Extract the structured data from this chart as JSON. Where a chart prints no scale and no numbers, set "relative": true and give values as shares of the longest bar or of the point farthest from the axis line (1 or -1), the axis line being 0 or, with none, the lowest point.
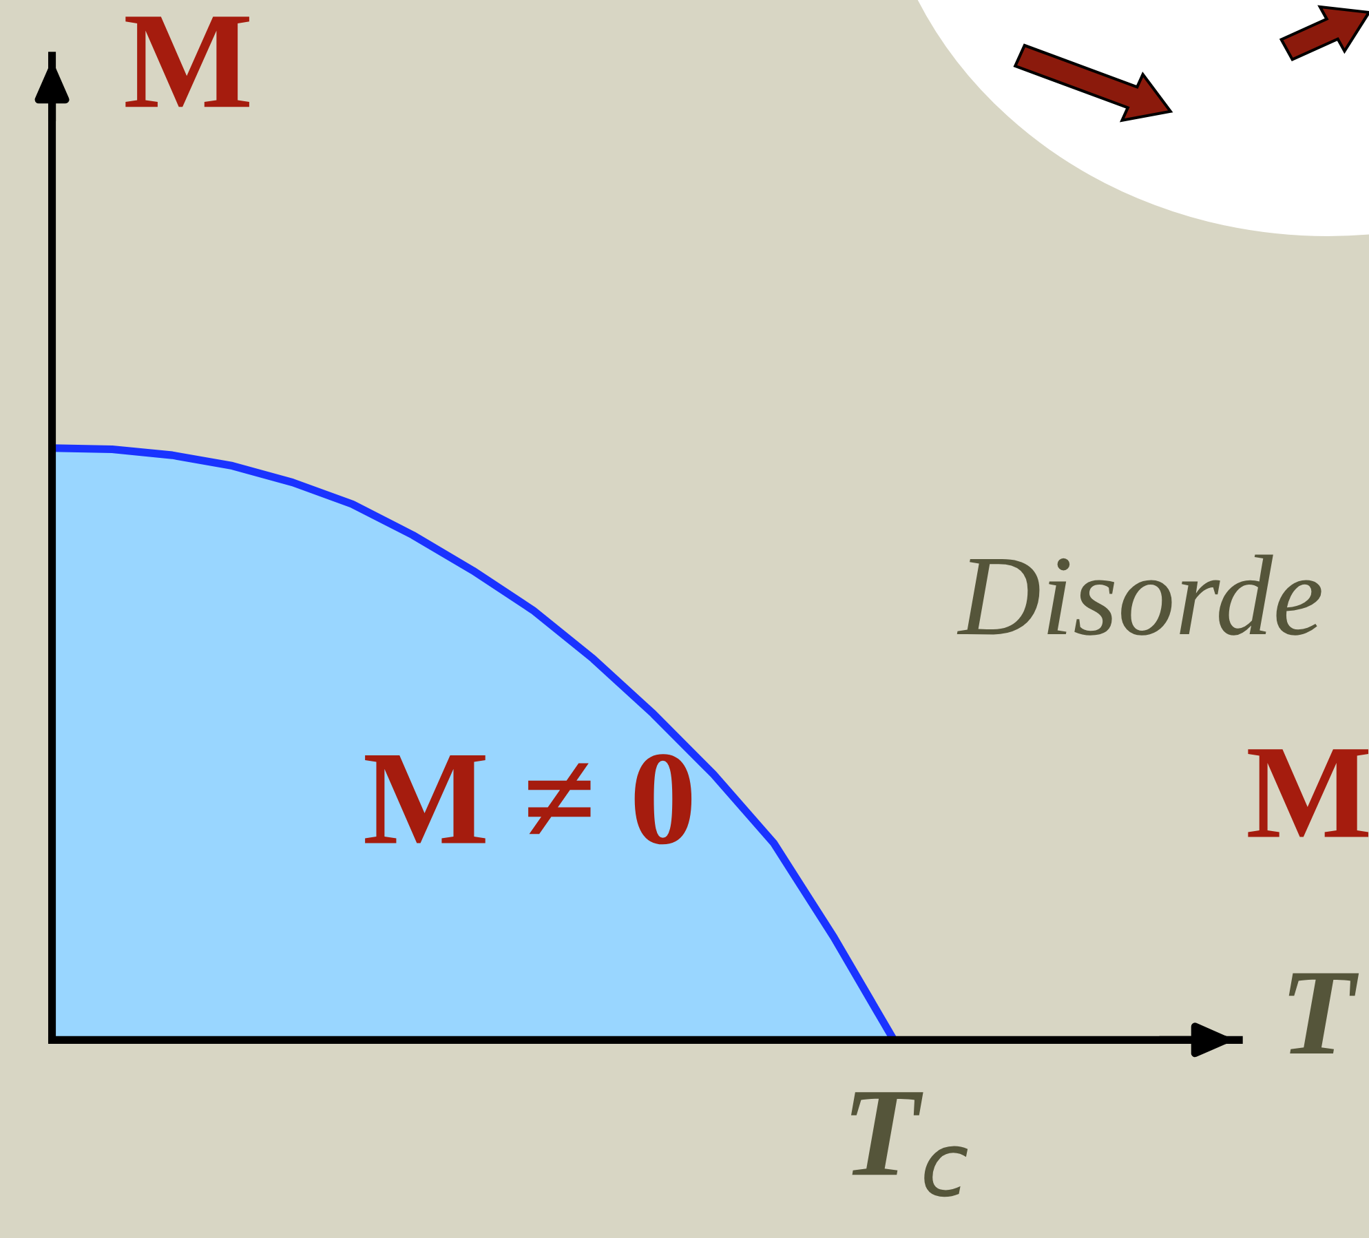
{
  "chart_data": {
    "type": "area",
    "relative": true,
    "xlabel": "T",
    "ylabel": "M",
    "categories": [
      null,
      null,
      null,
      null,
      null,
      null,
      null,
      null,
      null,
      null,
      null,
      null,
      null,
      null,
      null
    ],
    "series": [
      {
        "color": "#99d6ff",
        "values": [
          1,
          0.998,
          0.988,
          0.97,
          0.942,
          0.905,
          0.853,
          0.793,
          0.726,
          0.644,
          0.551,
          0.449,
          0.333,
          0.174,
          0
        ]
      }
    ],
    "annotations": [
      "M ≠ 0",
      "Disorde",
      "M",
      "T$_{c}$"
    ]
  }
}
